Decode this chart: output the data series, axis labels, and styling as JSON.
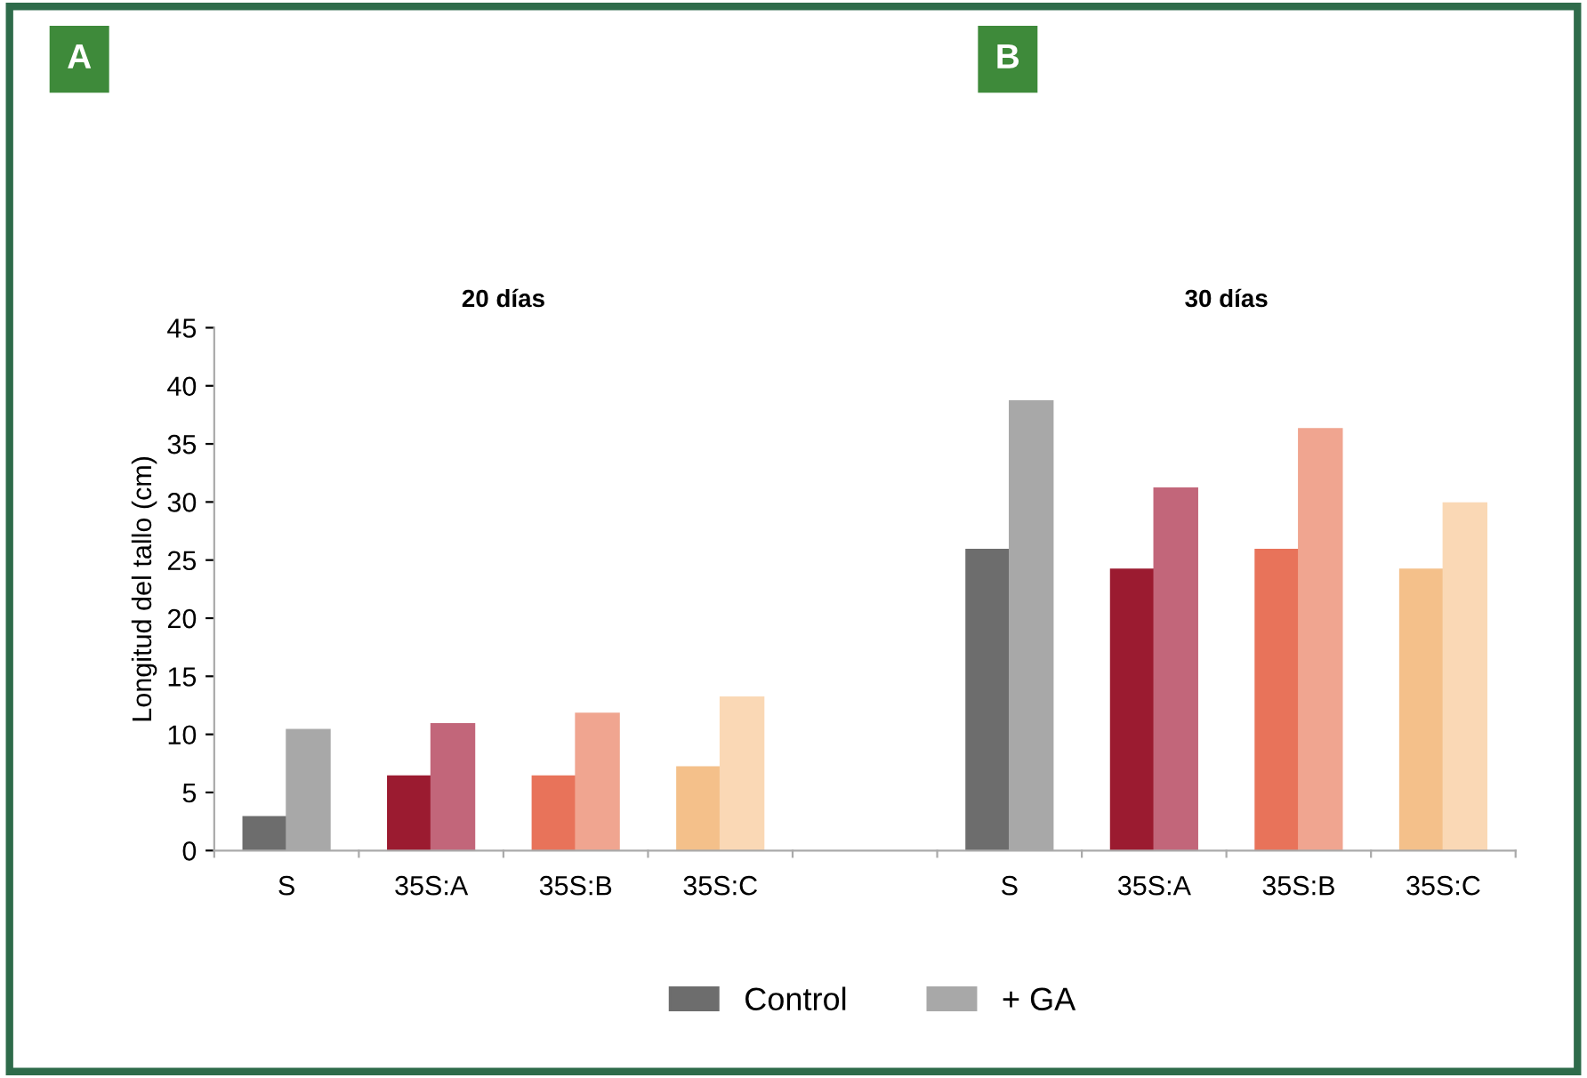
{
  "chart_data": {
    "type": "bar",
    "ylabel": "Longitud del tallo (cm)",
    "categories": [
      "S",
      "35S:A",
      "35S:B",
      "35S:C",
      null,
      "S",
      "35S:A",
      "35S:B",
      "35S:C"
    ],
    "series": [
      {
        "name": "Control",
        "color": "#6d6d6d",
        "colors": [
          "#6d6d6d",
          "#9b1b30",
          "#e8735a",
          "#f4c08a",
          "#ffffff",
          "#6d6d6d",
          "#9b1b30",
          "#e8735a",
          "#f4c08a"
        ],
        "values": [
          2.9,
          6.4,
          6.4,
          7.2,
          null,
          25.9,
          24.2,
          25.9,
          24.2
        ]
      },
      {
        "name": "+ GA",
        "color": "#a8a8a8",
        "colors": [
          "#a8a8a8",
          "#c2667a",
          "#f0a590",
          "#fad8b5",
          "#ffffff",
          "#a8a8a8",
          "#c2667a",
          "#f0a590",
          "#fad8b5"
        ],
        "values": [
          10.4,
          10.9,
          11.8,
          13.2,
          null,
          38.7,
          31.2,
          36.3,
          29.9
        ]
      }
    ],
    "annotations": [
      "A",
      "B",
      "20 días",
      "30 días"
    ],
    "ylim": [
      0,
      45
    ],
    "yticks": [
      0,
      5,
      10,
      15,
      20,
      25,
      30,
      35,
      40,
      45
    ],
    "grid": false,
    "legend": "bottom"
  }
}
